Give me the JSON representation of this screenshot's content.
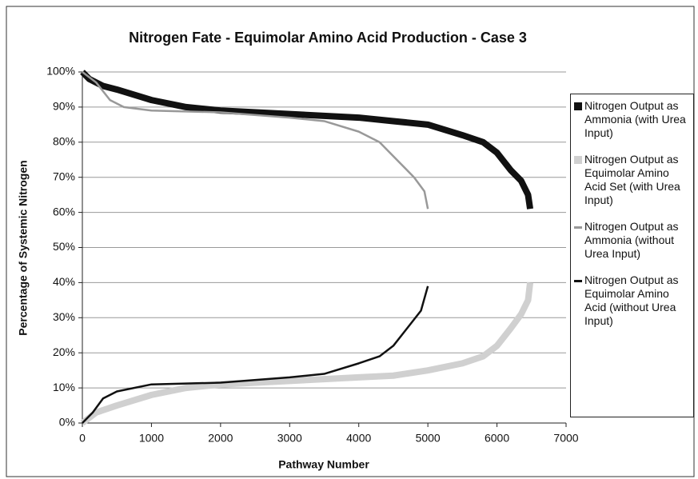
{
  "chart_data": {
    "type": "line",
    "title": "Nitrogen Fate - Equimolar Amino Acid Production - Case 3",
    "x_label": "Pathway Number",
    "y_label": "Percentage of Systemic Nitrogen",
    "xlim": [
      0,
      7000
    ],
    "xticks": [
      0,
      1000,
      2000,
      3000,
      4000,
      5000,
      6000,
      7000
    ],
    "ylim": [
      0,
      100
    ],
    "yticks": [
      {
        "value": 0,
        "label": "0%"
      },
      {
        "value": 10,
        "label": "10%"
      },
      {
        "value": 20,
        "label": "20%"
      },
      {
        "value": 30,
        "label": "30%"
      },
      {
        "value": 40,
        "label": "40%"
      },
      {
        "value": 50,
        "label": "50%"
      },
      {
        "value": 60,
        "label": "60%"
      },
      {
        "value": 70,
        "label": "70%"
      },
      {
        "value": 80,
        "label": "80%"
      },
      {
        "value": 90,
        "label": "90%"
      },
      {
        "value": 100,
        "label": "100%"
      }
    ],
    "grid": true,
    "series": [
      {
        "name": "Nitrogen Output as Ammonia (with Urea Input)",
        "color": "#111111",
        "width": 8,
        "x": [
          0,
          100,
          300,
          500,
          1000,
          1500,
          2000,
          3000,
          4000,
          4500,
          5000,
          5500,
          5800,
          6000,
          6200,
          6350,
          6450,
          6480
        ],
        "values": [
          100,
          98,
          96,
          95,
          92,
          90,
          89,
          88,
          87,
          86,
          85,
          82,
          80,
          77,
          72,
          69,
          65,
          61
        ]
      },
      {
        "name": "Nitrogen Output as Equimolar Amino Acid Set (with Urea Input)",
        "color": "#d0d0d0",
        "width": 8,
        "x": [
          0,
          200,
          500,
          1000,
          1500,
          2000,
          3000,
          4000,
          4500,
          5000,
          5500,
          5800,
          6000,
          6200,
          6350,
          6450,
          6480
        ],
        "values": [
          0,
          3,
          5,
          8,
          10,
          11,
          12,
          13,
          13.5,
          15,
          17,
          19,
          22,
          27,
          31,
          35,
          40
        ]
      },
      {
        "name": "Nitrogen Output as Ammonia (without Urea Input)",
        "color": "#999999",
        "width": 2.5,
        "x": [
          0,
          200,
          400,
          600,
          1000,
          2000,
          3000,
          3500,
          4000,
          4300,
          4600,
          4800,
          4950,
          5000
        ],
        "values": [
          100,
          97,
          92,
          90,
          89,
          88.5,
          87,
          86,
          83,
          80,
          74,
          70,
          66,
          61
        ]
      },
      {
        "name": "Nitrogen Output as Equimolar Amino Acid (without Urea Input)",
        "color": "#111111",
        "width": 2.5,
        "x": [
          0,
          150,
          300,
          500,
          1000,
          2000,
          3000,
          3500,
          4000,
          4300,
          4500,
          4700,
          4900,
          5000
        ],
        "values": [
          0,
          3,
          7,
          9,
          11,
          11.5,
          13,
          14,
          17,
          19,
          22,
          27,
          32,
          39
        ]
      }
    ]
  }
}
